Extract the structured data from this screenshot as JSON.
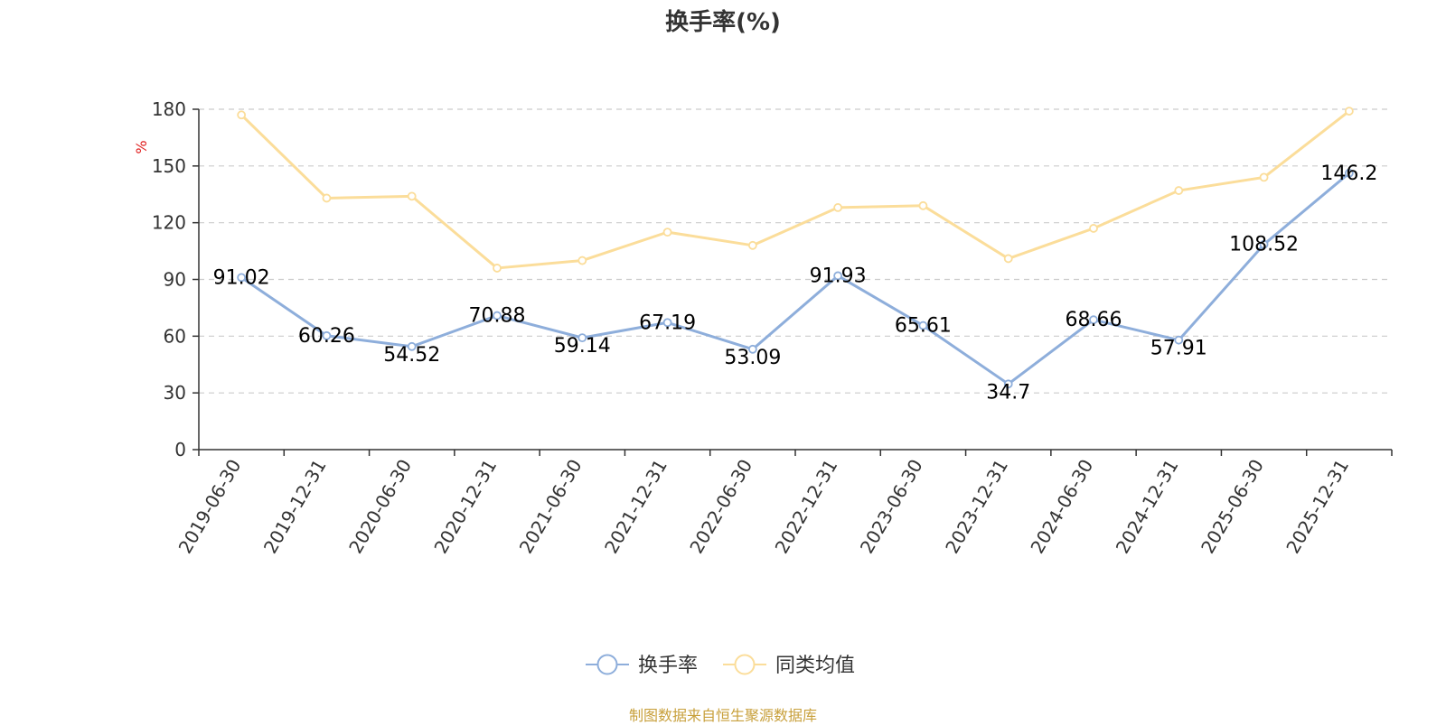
{
  "chart_data": {
    "type": "line",
    "title": "换手率(%)",
    "ylabel": "%",
    "ylim": [
      0,
      180
    ],
    "yticks": [
      "0",
      "30",
      "60",
      "90",
      "120",
      "150",
      "180"
    ],
    "categories": [
      "2019-06-30",
      "2019-12-31",
      "2020-06-30",
      "2020-12-31",
      "2021-06-30",
      "2021-12-31",
      "2022-06-30",
      "2022-12-31",
      "2023-06-30",
      "2023-12-31",
      "2024-06-30",
      "2024-12-31",
      "2025-06-30",
      "2025-12-31"
    ],
    "series": [
      {
        "name": "换手率",
        "color": "#8eaedb",
        "values": [
          91.02,
          60.26,
          54.52,
          70.88,
          59.14,
          67.19,
          53.09,
          91.93,
          65.61,
          34.7,
          68.66,
          57.91,
          108.52,
          146.2
        ],
        "labels": [
          "91.02",
          "60.26",
          "54.52",
          "70.88",
          "59.14",
          "67.19",
          "53.09",
          "91.93",
          "65.61",
          "34.7",
          "68.66",
          "57.91",
          "108.52",
          "146.2"
        ]
      },
      {
        "name": "同类均值",
        "color": "#fbdd9a",
        "values": [
          177,
          133,
          134,
          96,
          100,
          115,
          108,
          128,
          129,
          101,
          117,
          137,
          144,
          179
        ]
      }
    ],
    "grid": true,
    "legend": "bottom-center"
  },
  "unit_color": "#e02020",
  "source_note": "制图数据来自恒生聚源数据库",
  "source_color": "#c8a03c"
}
